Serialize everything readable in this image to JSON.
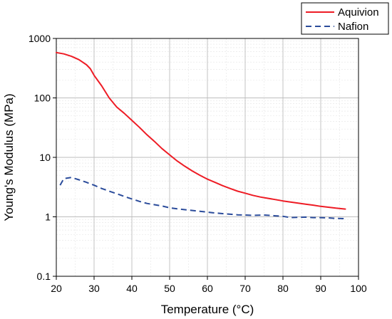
{
  "chart_data": {
    "type": "line",
    "xlabel": "Temperature (°C)",
    "ylabel": "Young's Modulus (MPa)",
    "xlim": [
      20,
      100
    ],
    "ylim": [
      0.1,
      1000
    ],
    "yscale": "log",
    "x_ticks": [
      "20",
      "30",
      "40",
      "50",
      "60",
      "70",
      "80",
      "90",
      "100"
    ],
    "y_ticks": [
      "0.1",
      "1",
      "10",
      "100",
      "1000"
    ],
    "grid": true,
    "legend_position": "top-right, outside plot area",
    "series": [
      {
        "name": "Aquivion",
        "color": "#ee1c25",
        "style": "solid",
        "x": [
          20,
          22,
          24,
          26,
          28,
          29,
          30,
          32,
          34,
          36,
          38,
          40,
          42,
          44,
          46,
          48,
          50,
          52,
          54,
          56,
          58,
          60,
          62,
          64,
          66,
          68,
          70,
          72,
          74,
          76,
          78,
          80,
          82,
          84,
          86,
          88,
          90,
          92,
          94,
          96.5
        ],
        "y": [
          580,
          550,
          500,
          440,
          360,
          310,
          240,
          160,
          100,
          70,
          55,
          42,
          32,
          24,
          18.5,
          14,
          11,
          8.7,
          7.1,
          5.9,
          5.0,
          4.3,
          3.8,
          3.35,
          3.0,
          2.7,
          2.5,
          2.3,
          2.15,
          2.05,
          1.95,
          1.85,
          1.77,
          1.7,
          1.63,
          1.57,
          1.5,
          1.45,
          1.4,
          1.35
        ]
      },
      {
        "name": "Nafion",
        "color": "#2b4c9b",
        "style": "dashed",
        "x": [
          21,
          22,
          24,
          26,
          28,
          30,
          32,
          34,
          36,
          38,
          40,
          42,
          44,
          46,
          48,
          50,
          52,
          55,
          58,
          60,
          62,
          65,
          68,
          70,
          72,
          75,
          78,
          80,
          82,
          84,
          86,
          88,
          90,
          92,
          94,
          96.5
        ],
        "y": [
          3.4,
          4.4,
          4.6,
          4.2,
          3.8,
          3.4,
          3.0,
          2.7,
          2.45,
          2.2,
          2.0,
          1.82,
          1.68,
          1.6,
          1.52,
          1.42,
          1.36,
          1.3,
          1.24,
          1.2,
          1.16,
          1.12,
          1.08,
          1.07,
          1.06,
          1.07,
          1.04,
          1.02,
          0.97,
          0.98,
          0.99,
          0.97,
          0.97,
          0.96,
          0.94,
          0.93
        ]
      }
    ]
  }
}
